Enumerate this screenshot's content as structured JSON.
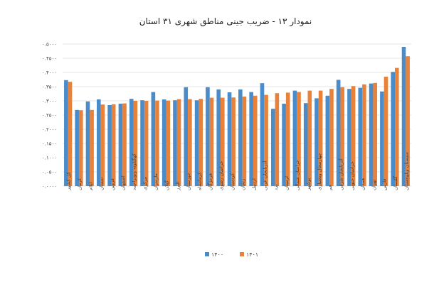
{
  "chart_data": {
    "type": "bar",
    "title": "نمودار ۱۳ - ضریب جینی مناطق شهری ۳۱ استان",
    "xlabel": "",
    "ylabel": "",
    "ylim": [
      0,
      0.5
    ],
    "y_step": 0.05,
    "y_tick_labels": [
      "۰.۰۰۰۰",
      "۰.۰۵۰۰",
      "۰.۱۰۰۰",
      "۰.۱۵۰۰",
      "۰.۲۰۰۰",
      "۰.۲۵۰۰",
      "۰.۳۰۰۰",
      "۰.۳۵۰۰",
      "۰.۴۰۰۰",
      "۰.۴۵۰۰",
      "۰.۵۰۰۰"
    ],
    "grid": true,
    "legend_position": "bottom",
    "categories": [
      "کل کشور",
      "کرمان",
      "ایلام",
      "سمنان",
      "قزوین",
      "اصفهان",
      "کهگیلویه وبویراحمد",
      "مرکزی",
      "مازندران",
      "گیلان",
      "البرز",
      "خوزستان",
      "کرمانشاه",
      "هرمزگان",
      "خراسان رضوی",
      "کردستان",
      "زنجان",
      "اردبیل",
      "آذربایجان غربی",
      "یزد",
      "لرستان",
      "خراسان شمالی",
      "بوشهر",
      "چهارمحال وبختیاری",
      "قم",
      "آذربایجان شرقی",
      "خراسان جنوبی",
      "همدان",
      "تهران",
      "فارس",
      "گلستان",
      "سیستان وبلوچستان"
    ],
    "series": [
      {
        "name": "۱۴۰۰",
        "color": "#4a8cc9",
        "values": [
          0.373,
          0.268,
          0.298,
          0.305,
          0.285,
          0.29,
          0.307,
          0.302,
          0.331,
          0.305,
          0.302,
          0.348,
          0.302,
          0.348,
          0.34,
          0.33,
          0.34,
          0.331,
          0.362,
          0.272,
          0.29,
          0.336,
          0.292,
          0.309,
          0.318,
          0.374,
          0.342,
          0.346,
          0.361,
          0.333,
          0.402,
          0.49
        ]
      },
      {
        "name": "۱۴۰۱",
        "color": "#e8813a",
        "values": [
          0.367,
          0.267,
          0.268,
          0.287,
          0.288,
          0.291,
          0.3,
          0.3,
          0.301,
          0.301,
          0.306,
          0.306,
          0.307,
          0.311,
          0.311,
          0.312,
          0.315,
          0.318,
          0.321,
          0.327,
          0.329,
          0.331,
          0.336,
          0.336,
          0.342,
          0.348,
          0.352,
          0.358,
          0.363,
          0.385,
          0.416,
          0.457
        ]
      }
    ]
  }
}
